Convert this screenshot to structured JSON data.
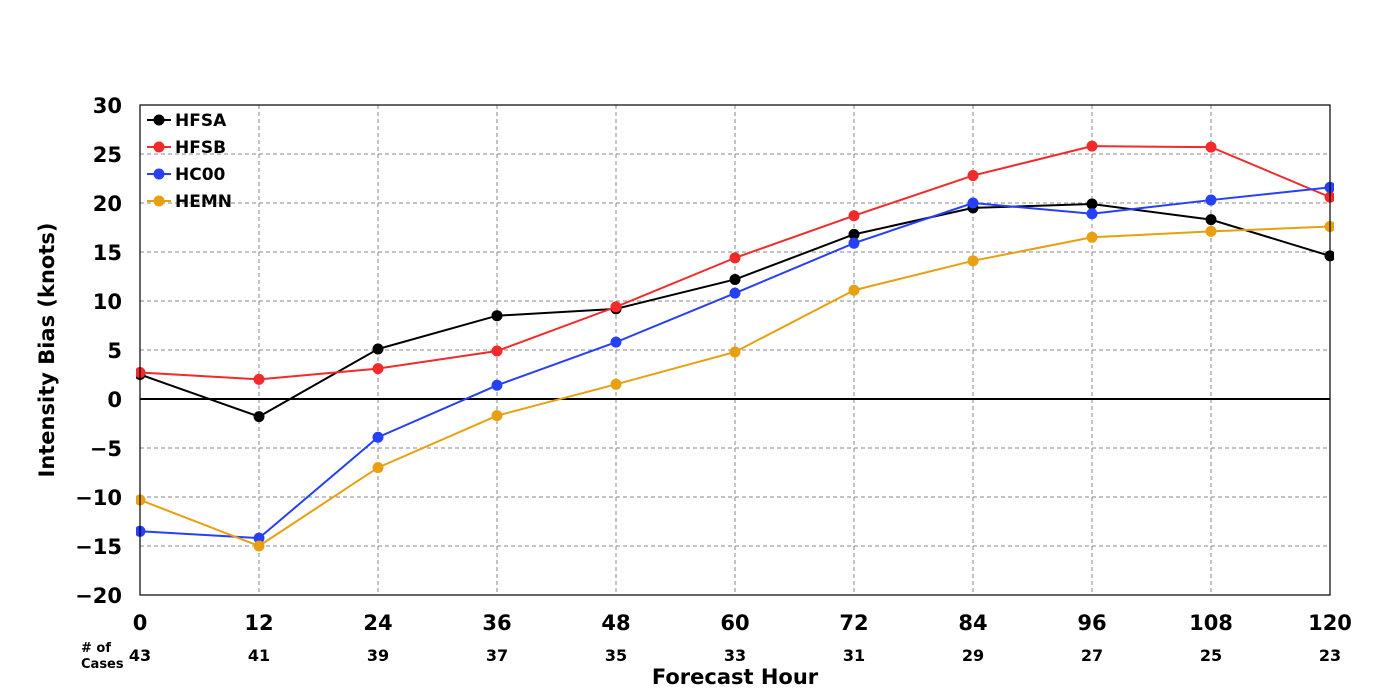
{
  "chart_data": {
    "type": "line",
    "xlabel": "Forecast Hour",
    "ylabel": "Intensity Bias (knots)",
    "x": [
      0,
      12,
      24,
      36,
      48,
      60,
      72,
      84,
      96,
      108,
      120
    ],
    "xticks": [
      "0",
      "12",
      "24",
      "36",
      "48",
      "60",
      "72",
      "84",
      "96",
      "108",
      "120"
    ],
    "xlim": [
      0,
      120
    ],
    "ylim": [
      -20,
      30
    ],
    "yticks": [
      "30",
      "25",
      "20",
      "15",
      "10",
      "5",
      "0",
      "−5",
      "−10",
      "−15",
      "−20"
    ],
    "ytick_values": [
      30,
      25,
      20,
      15,
      10,
      5,
      0,
      -5,
      -10,
      -15,
      -20
    ],
    "grid": true,
    "legend_position": "top-left",
    "cases_label_line1": "# of",
    "cases_label_line2": "Cases",
    "cases": [
      "43",
      "41",
      "39",
      "37",
      "35",
      "33",
      "31",
      "29",
      "27",
      "25",
      "23"
    ],
    "series": [
      {
        "name": "HFSA",
        "color": "#000000",
        "values": [
          2.5,
          -1.8,
          5.1,
          8.5,
          9.2,
          12.2,
          16.8,
          19.5,
          19.9,
          18.3,
          14.6
        ]
      },
      {
        "name": "HFSB",
        "color": "#f22a2a",
        "values": [
          2.7,
          2.0,
          3.1,
          4.9,
          9.4,
          14.4,
          18.7,
          22.8,
          25.8,
          25.7,
          20.6
        ]
      },
      {
        "name": "HC00",
        "color": "#2640f5",
        "values": [
          -13.5,
          -14.2,
          -3.9,
          1.4,
          5.8,
          10.8,
          15.9,
          20.0,
          18.9,
          20.3,
          21.6
        ]
      },
      {
        "name": "HEMN",
        "color": "#e89f10",
        "values": [
          -10.3,
          -15.0,
          -7.0,
          -1.7,
          1.5,
          4.8,
          11.1,
          14.1,
          16.5,
          17.1,
          17.6
        ]
      }
    ]
  }
}
